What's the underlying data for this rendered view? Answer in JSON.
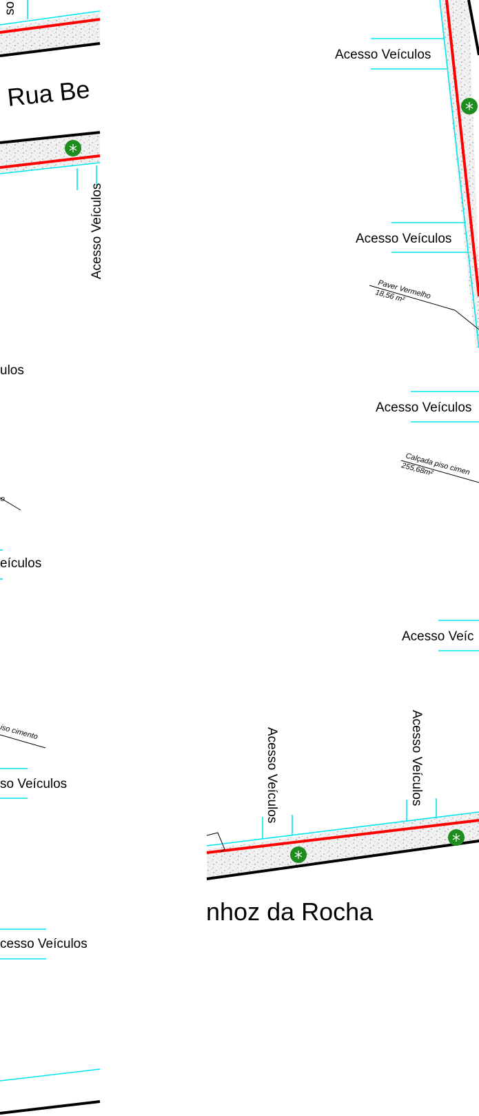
{
  "colors": {
    "curb_line": "#00e6ee",
    "red_line": "#ff0000",
    "edge_line": "#000000",
    "sidewalk_fill": "#e8e8e8",
    "tree": "#1e8c1e",
    "background": "#ffffff"
  },
  "icons": {
    "tree": "tree-icon"
  },
  "labels": {
    "street_left": "Rua Be",
    "street_bottom": "nhoz da Rocha",
    "cut_top_left": "so",
    "vehicle_access": "Acesso Veículos",
    "vehicle_access_cut_1": "ulos",
    "vehicle_access_cut_2": "eículos",
    "vehicle_access_cut_3": "so Veículos",
    "vehicle_access_cut_4": "cesso Veículos",
    "vehicle_access_cut_5": "Acesso Veíc",
    "paver_title": "Paver Vermelho",
    "paver_area": "18,56 m²",
    "sidewalk_title": "Calçada piso cimento",
    "sidewalk_title_cut": "Calçada piso cimen",
    "sidewalk_area": "255,68m²",
    "sidewalk_cut_left": "iso cimento",
    "cut_mark_left": "o"
  }
}
